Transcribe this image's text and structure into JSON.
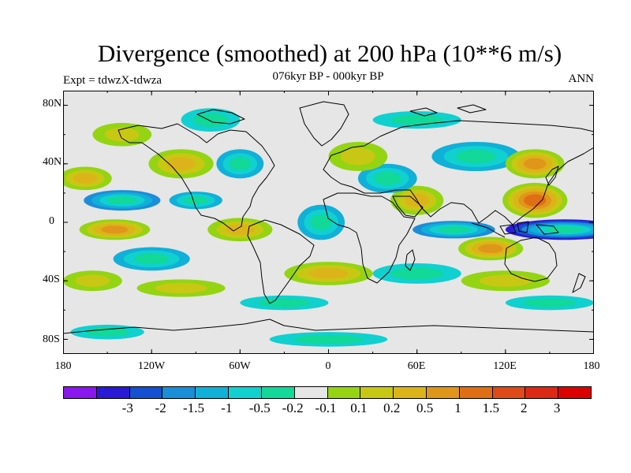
{
  "title": "Divergence (smoothed) at 200 hPa (10**6 m/s)",
  "left_label": "Expt = tdwzX-tdwza",
  "center_label": "076kyr BP - 000kyr BP",
  "right_label": "ANN",
  "lat_ticks": [
    "80N",
    "40N",
    "0",
    "40S",
    "80S"
  ],
  "lon_ticks": [
    "180",
    "120W",
    "60W",
    "0",
    "60E",
    "120E",
    "180"
  ],
  "colorbar": {
    "colors": [
      "#8a16f0",
      "#2a1ad6",
      "#1450d0",
      "#1a8ed8",
      "#10b0d8",
      "#10d0d0",
      "#12d898",
      "#e6e6e6",
      "#94d412",
      "#c8c814",
      "#dcb41a",
      "#e0961a",
      "#e06e14",
      "#e04a18",
      "#dc2814",
      "#dc0000"
    ],
    "labels": [
      "-3",
      "-2",
      "-1.5",
      "-1",
      "-0.5",
      "-0.2",
      "-0.1",
      "0.1",
      "0.2",
      "0.5",
      "1",
      "1.5",
      "2",
      "3"
    ]
  },
  "chart_data": {
    "type": "heatmap",
    "title": "Divergence (smoothed) at 200 hPa (10**6 m/s)",
    "subtitle": "076kyr BP - 000kyr BP",
    "xlim": [
      -180,
      180
    ],
    "ylim": [
      -90,
      90
    ],
    "levels": [
      -3,
      -2,
      -1.5,
      -1,
      -0.5,
      -0.2,
      -0.1,
      0.1,
      0.2,
      0.5,
      1,
      1.5,
      2,
      3
    ],
    "features": [
      {
        "lon": 160,
        "lat": -5,
        "value": -2.2,
        "rx": 40,
        "ry": 7
      },
      {
        "lon": 140,
        "lat": 15,
        "value": 1.6,
        "rx": 22,
        "ry": 12
      },
      {
        "lon": 110,
        "lat": -18,
        "value": 1.2,
        "rx": 22,
        "ry": 8
      },
      {
        "lon": 85,
        "lat": -5,
        "value": -1.2,
        "rx": 28,
        "ry": 6
      },
      {
        "lon": 60,
        "lat": 15,
        "value": 0.9,
        "rx": 18,
        "ry": 10
      },
      {
        "lon": 40,
        "lat": 30,
        "value": -0.6,
        "rx": 20,
        "ry": 10
      },
      {
        "lon": -5,
        "lat": 0,
        "value": -0.7,
        "rx": 16,
        "ry": 12
      },
      {
        "lon": -60,
        "lat": -5,
        "value": 0.8,
        "rx": 22,
        "ry": 8
      },
      {
        "lon": -90,
        "lat": 15,
        "value": -0.5,
        "rx": 18,
        "ry": 6
      },
      {
        "lon": -140,
        "lat": 15,
        "value": -1.2,
        "rx": 26,
        "ry": 7
      },
      {
        "lon": -145,
        "lat": -5,
        "value": 1.3,
        "rx": 24,
        "ry": 7
      },
      {
        "lon": -120,
        "lat": -25,
        "value": -0.6,
        "rx": 26,
        "ry": 8
      },
      {
        "lon": -165,
        "lat": 30,
        "value": 0.6,
        "rx": 18,
        "ry": 8
      },
      {
        "lon": -100,
        "lat": 40,
        "value": 0.5,
        "rx": 22,
        "ry": 10
      },
      {
        "lon": -60,
        "lat": 40,
        "value": -0.6,
        "rx": 16,
        "ry": 10
      },
      {
        "lon": 20,
        "lat": 45,
        "value": 0.4,
        "rx": 20,
        "ry": 10
      },
      {
        "lon": 100,
        "lat": 45,
        "value": -0.6,
        "rx": 30,
        "ry": 10
      },
      {
        "lon": 140,
        "lat": 40,
        "value": 1.0,
        "rx": 20,
        "ry": 10
      },
      {
        "lon": -140,
        "lat": 60,
        "value": 0.4,
        "rx": 20,
        "ry": 8
      },
      {
        "lon": -80,
        "lat": 70,
        "value": -0.4,
        "rx": 20,
        "ry": 8
      },
      {
        "lon": 60,
        "lat": 70,
        "value": -0.3,
        "rx": 30,
        "ry": 6
      },
      {
        "lon": 0,
        "lat": -35,
        "value": 0.5,
        "rx": 30,
        "ry": 8
      },
      {
        "lon": 60,
        "lat": -35,
        "value": -0.4,
        "rx": 30,
        "ry": 7
      },
      {
        "lon": 120,
        "lat": -40,
        "value": 0.4,
        "rx": 30,
        "ry": 7
      },
      {
        "lon": -160,
        "lat": -40,
        "value": 0.3,
        "rx": 20,
        "ry": 7
      },
      {
        "lon": -100,
        "lat": -45,
        "value": 0.3,
        "rx": 30,
        "ry": 6
      },
      {
        "lon": -30,
        "lat": -55,
        "value": -0.3,
        "rx": 30,
        "ry": 5
      },
      {
        "lon": 150,
        "lat": -55,
        "value": -0.3,
        "rx": 30,
        "ry": 5
      },
      {
        "lon": -150,
        "lat": -75,
        "value": -0.3,
        "rx": 25,
        "ry": 5
      },
      {
        "lon": 0,
        "lat": -80,
        "value": -0.3,
        "rx": 40,
        "ry": 5
      }
    ]
  }
}
